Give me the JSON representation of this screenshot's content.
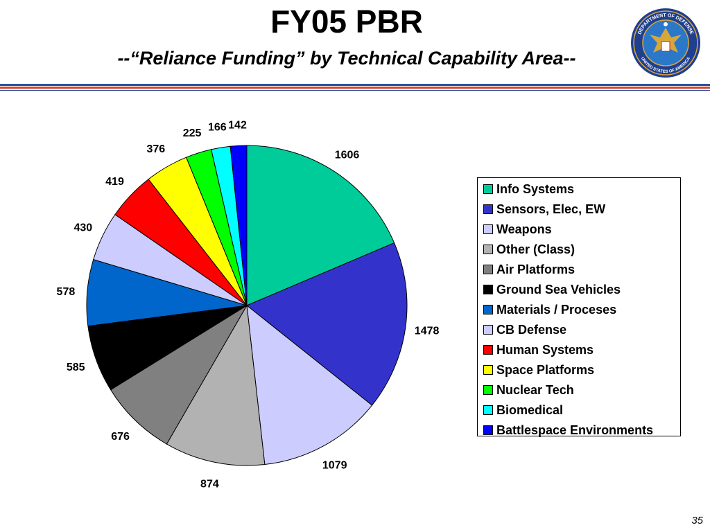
{
  "header": {
    "title": "FY05 PBR",
    "subtitle": "--“Reliance Funding” by Technical Capability Area--"
  },
  "seal": {
    "icon": "department-of-defense-seal-icon",
    "text_top": "DEPARTMENT OF DEFENSE",
    "text_bottom": "UNITED STATES OF AMERICA",
    "colors": {
      "ring": "#1f3f8f",
      "inner": "#2b78c8",
      "eagle": "#d9a63a"
    }
  },
  "chart_data": {
    "type": "pie",
    "title": "",
    "categories": [
      "Info Systems",
      "Sensors, Elec, EW",
      "Weapons",
      "Other (Class)",
      "Air Platforms",
      "Ground Sea Vehicles",
      "Materials / Proceses",
      "CB Defense",
      "Human Systems",
      "Space Platforms",
      "Nuclear Tech",
      "Biomedical",
      "Battlespace Environments"
    ],
    "values": [
      1606,
      1478,
      1079,
      874,
      676,
      585,
      578,
      430,
      419,
      376,
      225,
      166,
      142
    ],
    "colors": [
      "#00cc99",
      "#3333cc",
      "#ccccff",
      "#b2b2b2",
      "#808080",
      "#000000",
      "#0066cc",
      "#ccccff",
      "#ff0000",
      "#ffff00",
      "#00ff00",
      "#00ffff",
      "#0000ff"
    ],
    "start_angle": "12 o'clock",
    "direction": "clockwise",
    "data_labels": "outside",
    "legend_position": "right"
  },
  "footer": {
    "page_number": "35"
  }
}
